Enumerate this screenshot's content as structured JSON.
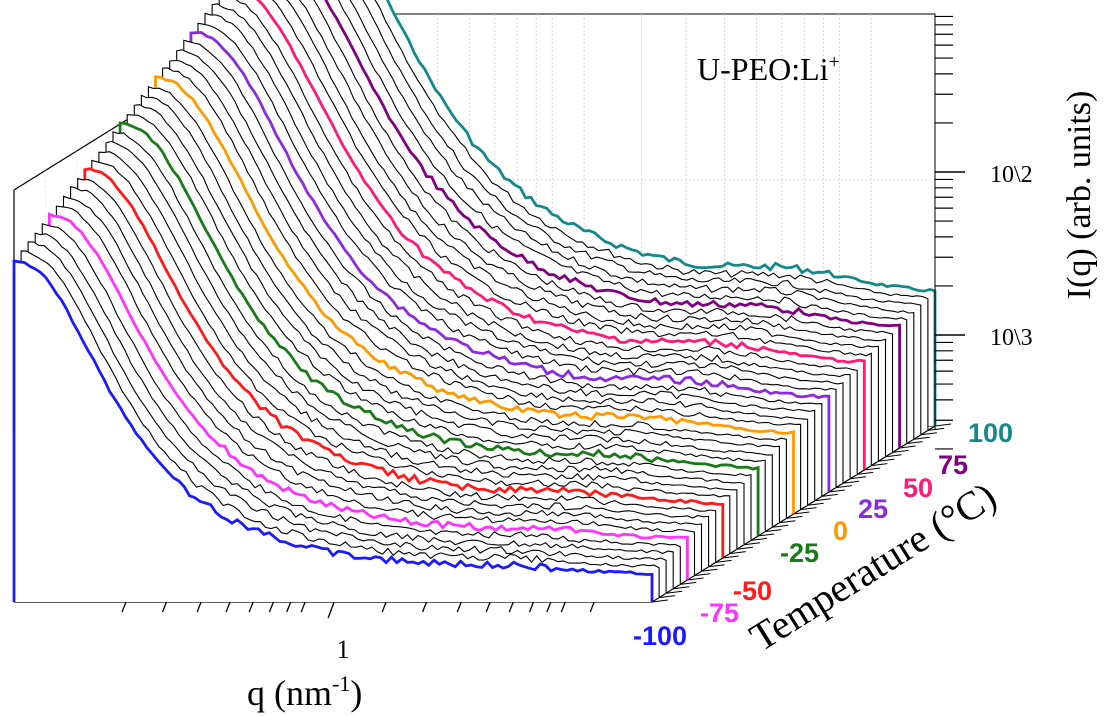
{
  "chart_data": {
    "type": "line",
    "subtype": "3d-waterfall",
    "title": "U-PEO:Li⁺",
    "title_base": "U-PEO:Li",
    "title_sup": "+",
    "xlabel": {
      "base": "q (nm",
      "sup": "-1",
      "end": ")"
    },
    "ylabel": "I(q) (arb. units)",
    "zlabel": "Temperature (°C)",
    "x_scale": "log",
    "x_tick_labels": [
      "1"
    ],
    "y_scale": "log",
    "y_tick_labels": [
      "10\\2",
      "10\\3"
    ],
    "temperature_range": [
      -100,
      100
    ],
    "temperature_step": 5,
    "temperature_labels": [
      {
        "text": "-100",
        "color": "#1a1aff"
      },
      {
        "text": "-75",
        "color": "#ff33ff"
      },
      {
        "text": "-50",
        "color": "#ff1a1a"
      },
      {
        "text": "-25",
        "color": "#1a7a1a"
      },
      {
        "text": "0",
        "color": "#ff9900"
      },
      {
        "text": "25",
        "color": "#8a2be2"
      },
      {
        "text": "50",
        "color": "#ff1a75"
      },
      {
        "text": "75",
        "color": "#800080"
      },
      {
        "text": "100",
        "color": "#138a8a"
      }
    ],
    "default_series_color": "#000000",
    "grid": true
  }
}
